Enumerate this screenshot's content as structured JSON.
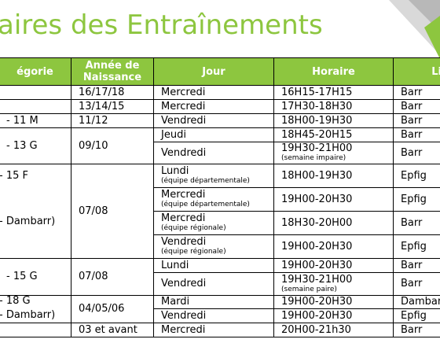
{
  "title": "aires des Entraînements",
  "table": {
    "header": [
      "égorie",
      "Année de Naissance",
      "Jour",
      "Horaire",
      "Lie"
    ],
    "groups": [
      {
        "year": "16/17/18",
        "slots": [
          {
            "day": "Mercredi",
            "time": "16H15-17H15",
            "place": "Barr"
          }
        ]
      },
      {
        "year": "13/14/15",
        "slots": [
          {
            "day": "Mercredi",
            "time": "17H30-18H30",
            "place": "Barr"
          }
        ]
      },
      {
        "category": [
          "- 11 M"
        ],
        "year": "11/12",
        "slots": [
          {
            "day": "Vendredi",
            "time": "18H00-19H30",
            "place": "Barr"
          }
        ]
      },
      {
        "category": [
          "- 13 G"
        ],
        "year": "09/10",
        "slots": [
          {
            "day": "Jeudi",
            "time": "18H45-20H15",
            "place": "Barr"
          },
          {
            "day": "Vendredi",
            "time": "19H30-21H00",
            "time_note": "(semaine impaire)",
            "place": "Barr"
          }
        ]
      },
      {
        "category": [
          "- 15 F",
          "- Dambarr)"
        ],
        "year": "07/08",
        "slots": [
          {
            "day": "Lundi",
            "day_note": "(équipe départementale)",
            "time": "18H00-19H30",
            "place": "Epfig"
          },
          {
            "day": "Mercredi",
            "day_note": "(équipe départementale)",
            "time": "19H00-20H30",
            "place": "Epfig"
          },
          {
            "day": "Mercredi",
            "day_note": "(équipe régionale)",
            "time": "18H30-20H00",
            "place": "Barr"
          },
          {
            "day": "Vendredi",
            "day_note": "(équipe régionale)",
            "time": "19H00-20H30",
            "place": "Epfig"
          }
        ]
      },
      {
        "category": [
          "- 15 G"
        ],
        "year": "07/08",
        "slots": [
          {
            "day": "Lundi",
            "time": "19H00-20H30",
            "place": "Barr"
          },
          {
            "day": "Vendredi",
            "time": "19H30-21H00",
            "time_note": "(semaine paire)",
            "place": "Barr"
          }
        ]
      },
      {
        "category": [
          "- 18 G",
          "- Dambarr)"
        ],
        "year": "04/05/06",
        "slots": [
          {
            "day": "Mardi",
            "time": "19H00-20H30",
            "place": "Dambarr"
          },
          {
            "day": "Vendredi",
            "time": "19H00-20H30",
            "place": "Epfig"
          }
        ]
      },
      {
        "year": "03 et avant",
        "slots": [
          {
            "day": "Mercredi",
            "time": "20H00-21h30",
            "place": "Barr"
          }
        ]
      }
    ]
  }
}
